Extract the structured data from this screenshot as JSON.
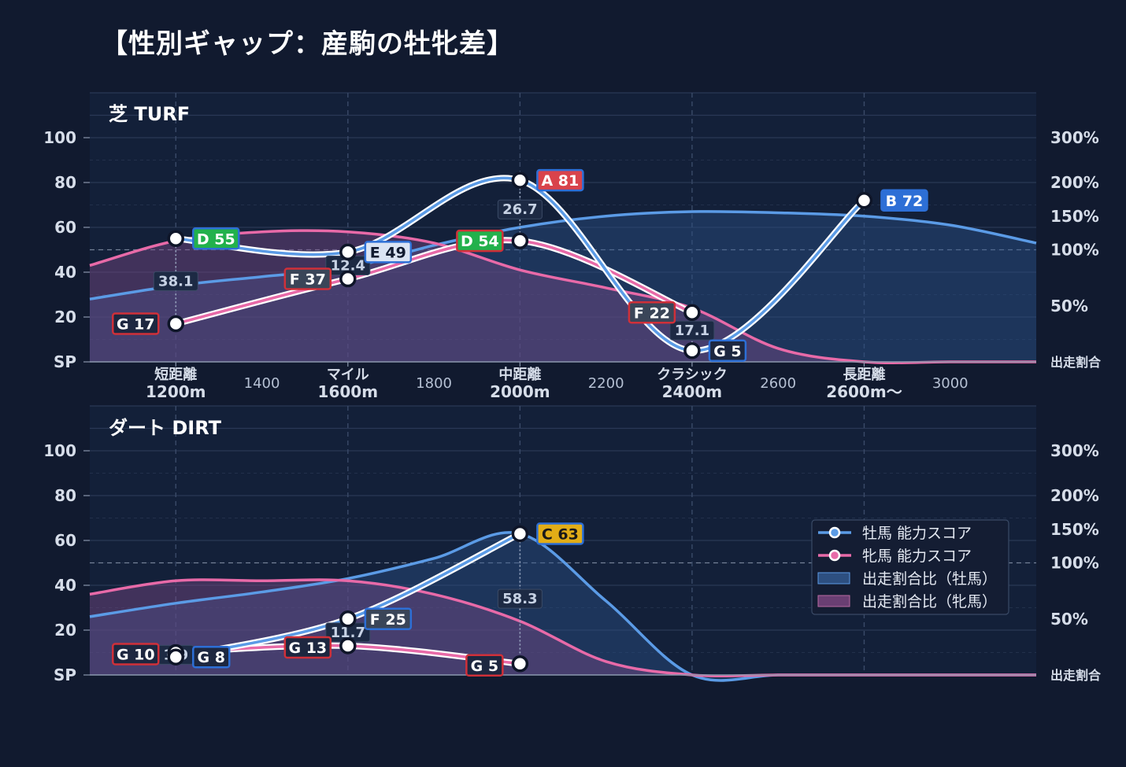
{
  "title": "【性別ギャップ：産駒の牡牝差】",
  "colors": {
    "background": "#111a2f",
    "plot_bg": "#132039",
    "male": "#5b9be6",
    "female": "#e86aa8",
    "grade_A": "#d9434b",
    "grade_B": "#2d6fd6",
    "grade_C": "#e2ad17",
    "grade_D": "#22b14c",
    "grade_E": "#dbe4f3",
    "grade_F": "#3a4558",
    "grade_G": "#1d2740"
  },
  "legend": {
    "male_score": "牡馬 能力スコア",
    "female_score": "牝馬 能力スコア",
    "male_ratio": "出走割合比（牡馬）",
    "female_ratio": "出走割合比（牝馬）"
  },
  "chart_data": [
    {
      "type": "line",
      "panel_label": "芝 TURF",
      "y_ticks": [
        "SP",
        "20",
        "40",
        "60",
        "80",
        "100"
      ],
      "y_tick_values": [
        0,
        20,
        40,
        60,
        80,
        100
      ],
      "ylim": [
        0,
        120
      ],
      "y2_ticks": [
        "出走割合",
        "50%",
        "100%",
        "150%",
        "200%",
        "300%"
      ],
      "y2_tick_values": [
        0,
        25,
        50,
        65,
        80,
        100
      ],
      "x_categories": [
        {
          "x": 1200,
          "line1": "短距離",
          "line2": "1200m"
        },
        {
          "x": 1600,
          "line1": "マイル",
          "line2": "1600m"
        },
        {
          "x": 2000,
          "line1": "中距離",
          "line2": "2000m"
        },
        {
          "x": 2400,
          "line1": "クラシック",
          "line2": "2400m"
        },
        {
          "x": 2800,
          "line1": "長距離",
          "line2": "2600m〜"
        }
      ],
      "x_minor_ticks": [
        {
          "x": 1400,
          "label": "1400"
        },
        {
          "x": 1800,
          "label": "1800"
        },
        {
          "x": 2200,
          "label": "2200"
        },
        {
          "x": 2600,
          "label": "2600"
        },
        {
          "x": 3000,
          "label": "3000"
        }
      ],
      "xlim": [
        1000,
        3200
      ],
      "male_score": [
        {
          "x": 1200,
          "y": 55,
          "grade": "D",
          "label": "D 55"
        },
        {
          "x": 1600,
          "y": 49,
          "grade": "E",
          "label": "E 49"
        },
        {
          "x": 2000,
          "y": 81,
          "grade": "A",
          "label": "A 81"
        },
        {
          "x": 2400,
          "y": 5,
          "grade": "G",
          "label": "G 5"
        },
        {
          "x": 2800,
          "y": 72,
          "grade": "B",
          "label": "B 72"
        }
      ],
      "female_score": [
        {
          "x": 1200,
          "y": 17,
          "grade": "G",
          "label": "G 17"
        },
        {
          "x": 1600,
          "y": 37,
          "grade": "F",
          "label": "F 37"
        },
        {
          "x": 2000,
          "y": 54,
          "grade": "D",
          "label": "D 54"
        },
        {
          "x": 2400,
          "y": 22,
          "grade": "F",
          "label": "F 22"
        }
      ],
      "gap_labels": [
        {
          "x": 1200,
          "y": 36,
          "text": "38.1"
        },
        {
          "x": 1600,
          "y": 43,
          "text": "12.4"
        },
        {
          "x": 2000,
          "y": 68,
          "text": "26.7"
        },
        {
          "x": 2400,
          "y": 14,
          "text": "17.1"
        }
      ],
      "male_ratio_area": [
        [
          1000,
          28
        ],
        [
          1200,
          34
        ],
        [
          1400,
          38
        ],
        [
          1600,
          42
        ],
        [
          1800,
          52
        ],
        [
          2000,
          60
        ],
        [
          2200,
          65
        ],
        [
          2400,
          67
        ],
        [
          2600,
          66.5
        ],
        [
          2800,
          65
        ],
        [
          3000,
          61
        ],
        [
          3200,
          53
        ]
      ],
      "female_ratio_area": [
        [
          1000,
          43
        ],
        [
          1200,
          54
        ],
        [
          1400,
          58
        ],
        [
          1600,
          58
        ],
        [
          1800,
          53
        ],
        [
          2000,
          41
        ],
        [
          2200,
          33
        ],
        [
          2400,
          24
        ],
        [
          2600,
          6
        ],
        [
          2800,
          0
        ],
        [
          3000,
          0
        ],
        [
          3200,
          0
        ]
      ]
    },
    {
      "type": "line",
      "panel_label": "ダート DIRT",
      "y_ticks": [
        "SP",
        "20",
        "40",
        "60",
        "80",
        "100"
      ],
      "y_tick_values": [
        0,
        20,
        40,
        60,
        80,
        100
      ],
      "ylim": [
        0,
        120
      ],
      "y2_ticks": [
        "出走割合",
        "50%",
        "100%",
        "150%",
        "200%",
        "300%"
      ],
      "y2_tick_values": [
        0,
        25,
        50,
        65,
        80,
        100
      ],
      "x_categories": [],
      "x_minor_ticks": [],
      "xlim": [
        1000,
        3200
      ],
      "male_score": [
        {
          "x": 1200,
          "y": 8,
          "grade": "G",
          "label": "G 8"
        },
        {
          "x": 1600,
          "y": 25,
          "grade": "F",
          "label": "F 25"
        },
        {
          "x": 2000,
          "y": 63,
          "grade": "C",
          "label": "C 63"
        }
      ],
      "female_score": [
        {
          "x": 1200,
          "y": 10,
          "grade": "G",
          "label": "G 10"
        },
        {
          "x": 1600,
          "y": 13,
          "grade": "G",
          "label": "G 13"
        },
        {
          "x": 2000,
          "y": 5,
          "grade": "G",
          "label": "G 5"
        }
      ],
      "gap_labels": [
        {
          "x": 1200,
          "y": 9,
          "text": "1.9"
        },
        {
          "x": 1600,
          "y": 19,
          "text": "11.7"
        },
        {
          "x": 2000,
          "y": 34,
          "text": "58.3"
        }
      ],
      "male_ratio_area": [
        [
          1000,
          26
        ],
        [
          1200,
          32
        ],
        [
          1400,
          37
        ],
        [
          1600,
          43
        ],
        [
          1800,
          52
        ],
        [
          2000,
          63
        ],
        [
          2200,
          33
        ],
        [
          2400,
          0
        ],
        [
          2600,
          0
        ],
        [
          2800,
          0
        ],
        [
          3000,
          0
        ],
        [
          3200,
          0
        ]
      ],
      "female_ratio_area": [
        [
          1000,
          36
        ],
        [
          1200,
          42
        ],
        [
          1400,
          42
        ],
        [
          1600,
          42
        ],
        [
          1800,
          36
        ],
        [
          2000,
          24
        ],
        [
          2200,
          6
        ],
        [
          2400,
          0
        ],
        [
          2600,
          0
        ],
        [
          2800,
          0
        ],
        [
          3000,
          0
        ],
        [
          3200,
          0
        ]
      ]
    }
  ]
}
